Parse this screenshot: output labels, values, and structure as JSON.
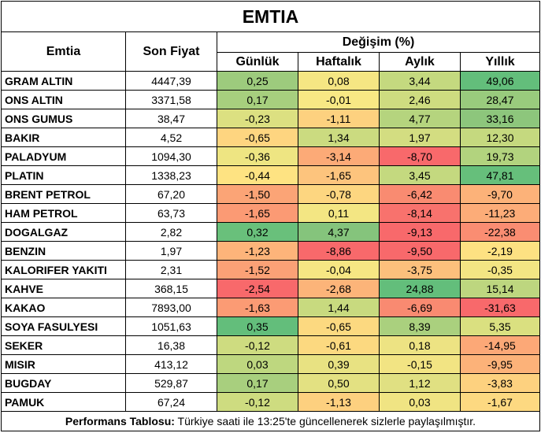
{
  "title": "EMTIA",
  "headers": {
    "commodity": "Emtia",
    "last_price": "Son Fiyat",
    "change_group": "Değişim (%)",
    "daily": "Günlük",
    "weekly": "Haftalık",
    "monthly": "Aylık",
    "yearly": "Yıllık"
  },
  "rows": [
    {
      "name": "GRAM ALTIN",
      "price": "4447,39",
      "daily": "0,25",
      "weekly": "0,08",
      "monthly": "3,44",
      "yearly": "49,06",
      "colors": [
        "#9dcb7d",
        "#f5e683",
        "#c4d97f",
        "#63be7b"
      ]
    },
    {
      "name": "ONS ALTIN",
      "price": "3371,58",
      "daily": "0,17",
      "weekly": "-0,01",
      "monthly": "2,46",
      "yearly": "28,47",
      "colors": [
        "#a7cf7e",
        "#f8e884",
        "#cedc80",
        "#99cb7d"
      ]
    },
    {
      "name": "ONS GUMUS",
      "price": "38,47",
      "daily": "-0,23",
      "weekly": "-1,11",
      "monthly": "4,77",
      "yearly": "33,16",
      "colors": [
        "#dce081",
        "#fdd17f",
        "#b5d47e",
        "#8dc67c"
      ]
    },
    {
      "name": "BAKIR",
      "price": "4,52",
      "daily": "-0,65",
      "weekly": "1,34",
      "monthly": "1,97",
      "yearly": "12,30",
      "colors": [
        "#fed580",
        "#cbdb80",
        "#d3dd81",
        "#c5d97f"
      ]
    },
    {
      "name": "PALADYUM",
      "price": "1094,30",
      "daily": "-0,36",
      "weekly": "-3,14",
      "monthly": "-8,70",
      "yearly": "19,73",
      "colors": [
        "#eee582",
        "#fcaa77",
        "#f8696b",
        "#b2d37e"
      ]
    },
    {
      "name": "PLATIN",
      "price": "1338,23",
      "daily": "-0,44",
      "weekly": "-1,65",
      "monthly": "3,45",
      "yearly": "47,81",
      "colors": [
        "#fee382",
        "#fdc47d",
        "#c4d97f",
        "#66bf7b"
      ]
    },
    {
      "name": "BRENT PETROL",
      "price": "67,20",
      "daily": "-1,50",
      "weekly": "-0,78",
      "monthly": "-6,42",
      "yearly": "-9,70",
      "colors": [
        "#fba476",
        "#fdd680",
        "#f98b71",
        "#fcb279"
      ]
    },
    {
      "name": "HAM PETROL",
      "price": "63,73",
      "daily": "-1,65",
      "weekly": "0,11",
      "monthly": "-8,14",
      "yearly": "-11,23",
      "colors": [
        "#fb9a74",
        "#f3e683",
        "#f8726d",
        "#fcac78"
      ]
    },
    {
      "name": "DOGALGAZ",
      "price": "2,82",
      "daily": "0,32",
      "weekly": "4,37",
      "monthly": "-9,13",
      "yearly": "-22,38",
      "colors": [
        "#69c07b",
        "#85c47c",
        "#f8696b",
        "#fa8d72"
      ]
    },
    {
      "name": "BENZIN",
      "price": "1,97",
      "daily": "-1,23",
      "weekly": "-8,86",
      "monthly": "-9,50",
      "yearly": "-2,19",
      "colors": [
        "#fdb47a",
        "#f8696b",
        "#f8696b",
        "#fde182"
      ]
    },
    {
      "name": "KALORIFER YAKITI",
      "price": "2,31",
      "daily": "-1,52",
      "weekly": "-0,04",
      "monthly": "-3,75",
      "yearly": "-0,35",
      "colors": [
        "#fba176",
        "#f6e683",
        "#fcc07c",
        "#f3e583"
      ]
    },
    {
      "name": "KAHVE",
      "price": "368,15",
      "daily": "-2,54",
      "weekly": "-2,68",
      "monthly": "24,88",
      "yearly": "15,14",
      "colors": [
        "#f8696b",
        "#fcb479",
        "#63be7b",
        "#bdd67f"
      ]
    },
    {
      "name": "KAKAO",
      "price": "7893,00",
      "daily": "-1,63",
      "weekly": "1,44",
      "monthly": "-6,69",
      "yearly": "-31,63",
      "colors": [
        "#fb9b74",
        "#c8da7f",
        "#f98a71",
        "#f8696b"
      ]
    },
    {
      "name": "SOYA FASULYESI",
      "price": "1051,63",
      "daily": "0,35",
      "weekly": "-0,65",
      "monthly": "8,39",
      "yearly": "5,35",
      "colors": [
        "#63be7b",
        "#fcd980",
        "#aad07e",
        "#dae080"
      ]
    },
    {
      "name": "SEKER",
      "price": "16,38",
      "daily": "-0,12",
      "weekly": "-0,61",
      "monthly": "0,18",
      "yearly": "-14,95",
      "colors": [
        "#cedc80",
        "#fcd980",
        "#ede383",
        "#fca877"
      ]
    },
    {
      "name": "MISIR",
      "price": "413,12",
      "daily": "0,03",
      "weekly": "0,39",
      "monthly": "-0,15",
      "yearly": "-9,95",
      "colors": [
        "#bed77f",
        "#e8e282",
        "#f2e483",
        "#fcb279"
      ]
    },
    {
      "name": "BUGDAY",
      "price": "529,87",
      "daily": "0,17",
      "weekly": "0,50",
      "monthly": "1,12",
      "yearly": "-3,83",
      "colors": [
        "#a8cf7e",
        "#e3e182",
        "#e0e082",
        "#fdd17f"
      ]
    },
    {
      "name": "PAMUK",
      "price": "67,24",
      "daily": "-0,12",
      "weekly": "-1,13",
      "monthly": "0,03",
      "yearly": "-1,67",
      "colors": [
        "#cedc80",
        "#fdd07f",
        "#f0e483",
        "#fdd981"
      ]
    }
  ],
  "footer": {
    "label": "Performans Tablosu:",
    "text": " Türkiye saati ile 13:25'te güncellenerek sizlerle paylaşılmıştır."
  }
}
